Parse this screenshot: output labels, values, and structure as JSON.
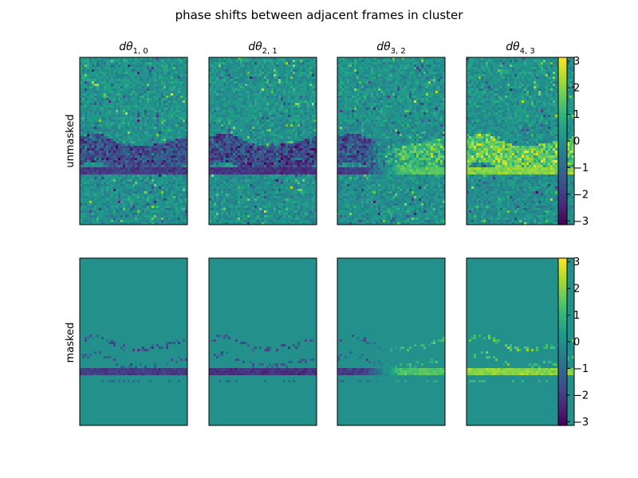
{
  "chart_data": {
    "type": "heatmap",
    "title": "phase shifts between adjacent frames in cluster",
    "rows": [
      "unmasked",
      "masked"
    ],
    "columns": [
      {
        "label": "dθ",
        "subscript": "1, 0",
        "band_mean": -2.0
      },
      {
        "label": "dθ",
        "subscript": "2, 1",
        "band_mean": -2.2
      },
      {
        "label": "dθ",
        "subscript": "3, 2",
        "band_mean_left": -2.0,
        "band_mean_right": 1.4
      },
      {
        "label": "dθ",
        "subscript": "4, 3",
        "band_mean": 2.0
      }
    ],
    "colorbar": {
      "colormap": "viridis",
      "range": [
        -3.14159,
        3.14159
      ],
      "ticks": [
        "3",
        "2",
        "1",
        "0",
        "−1",
        "−2",
        "−3"
      ],
      "tick_values": [
        3,
        2,
        1,
        0,
        -1,
        -2,
        -3
      ]
    },
    "background_value_masked": 0,
    "grid": false
  }
}
